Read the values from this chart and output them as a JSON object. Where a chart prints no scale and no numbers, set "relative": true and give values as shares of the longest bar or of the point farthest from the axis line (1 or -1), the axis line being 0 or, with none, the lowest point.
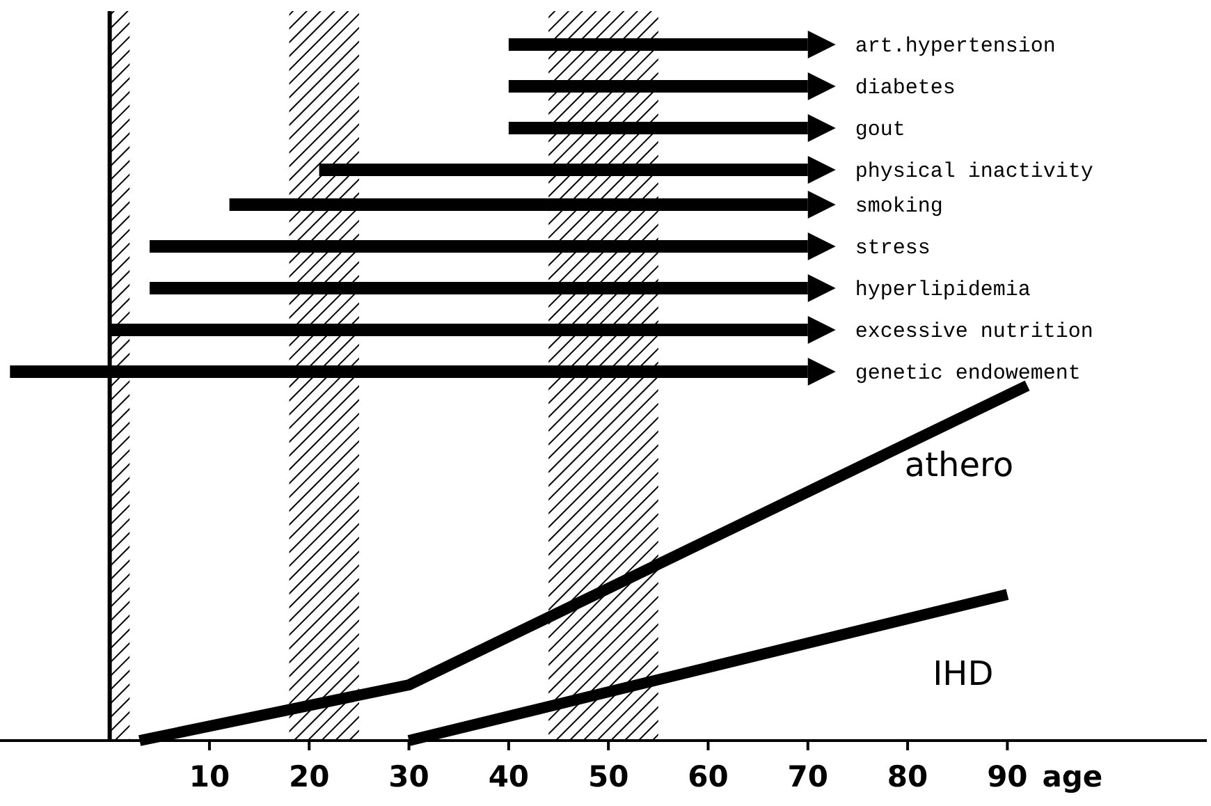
{
  "chart_data": {
    "type": "line",
    "relative": true,
    "xlabel": "age",
    "xlim": [
      -11,
      110
    ],
    "xticks": [
      10,
      20,
      30,
      40,
      50,
      60,
      70,
      80,
      90
    ],
    "tick_labels": "x",
    "grid": false,
    "legend": "right",
    "marker": "none",
    "series": [
      {
        "name": "art.hypertension",
        "color": "#000000",
        "x": [
          40,
          70
        ],
        "values": [
          1,
          1
        ]
      },
      {
        "name": "diabetes",
        "color": "#000000",
        "x": [
          40,
          70
        ],
        "values": [
          0.94,
          0.94
        ]
      },
      {
        "name": "gout",
        "color": "#000000",
        "x": [
          40,
          70
        ],
        "values": [
          0.88,
          0.88
        ]
      },
      {
        "name": "physical inactivity",
        "color": "#000000",
        "x": [
          21,
          70
        ],
        "values": [
          0.82,
          0.82
        ]
      },
      {
        "name": "smoking",
        "color": "#000000",
        "x": [
          12,
          70
        ],
        "values": [
          0.77,
          0.77
        ]
      },
      {
        "name": "stress",
        "color": "#000000",
        "x": [
          4,
          70
        ],
        "values": [
          0.71,
          0.71
        ]
      },
      {
        "name": "hyperlipidemia",
        "color": "#000000",
        "x": [
          4,
          70
        ],
        "values": [
          0.65,
          0.65
        ]
      },
      {
        "name": "excessive nutrition",
        "color": "#000000",
        "x": [
          0,
          70
        ],
        "values": [
          0.59,
          0.59
        ]
      },
      {
        "name": "genetic endowement",
        "color": "#000000",
        "x": [
          -10,
          70
        ],
        "values": [
          0.53,
          0.53
        ]
      },
      {
        "name": "athero",
        "color": "#000000",
        "line_style": "solid",
        "x": [
          3,
          30,
          92
        ],
        "values": [
          0,
          0.08,
          0.51
        ]
      },
      {
        "name": "IHD",
        "color": "#000000",
        "line_style": "solid",
        "x": [
          30,
          90
        ],
        "values": [
          0,
          0.21
        ]
      }
    ],
    "bands": [
      {
        "axis": "x",
        "from": 0,
        "to": 2,
        "color": "#000000"
      },
      {
        "axis": "x",
        "from": 18,
        "to": 25,
        "color": "#000000"
      },
      {
        "axis": "x",
        "from": 44,
        "to": 55,
        "color": "#000000"
      }
    ]
  }
}
